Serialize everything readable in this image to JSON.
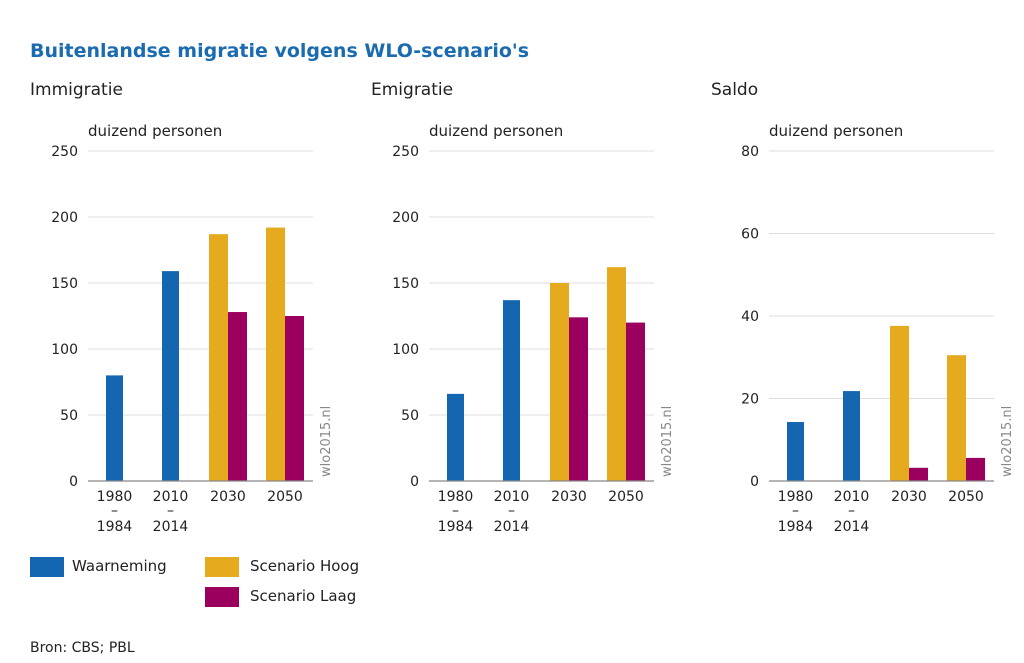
{
  "title": "Buitenlandse migratie volgens WLO-scenario's",
  "source": "Bron: CBS; PBL",
  "watermark": "wlo2015.nl",
  "legend": [
    {
      "name": "Waarneming",
      "color": "#1566b0"
    },
    {
      "name": "Scenario Hoog",
      "color": "#e5aa1e"
    },
    {
      "name": "Scenario Laag",
      "color": "#9b005f"
    }
  ],
  "chart_data": [
    {
      "type": "bar",
      "title": "Immigratie",
      "ylabel": "duizend personen",
      "ylim": [
        0,
        250
      ],
      "yticks": [
        0,
        50,
        100,
        150,
        200,
        250
      ],
      "grid": true,
      "categories": [
        "1980 – 1984",
        "2010 – 2014",
        "2030",
        "2050"
      ],
      "series": [
        {
          "name": "Waarneming",
          "values": [
            80,
            159,
            null,
            null
          ]
        },
        {
          "name": "Scenario Hoog",
          "values": [
            null,
            null,
            187,
            192
          ]
        },
        {
          "name": "Scenario Laag",
          "values": [
            null,
            null,
            128,
            125
          ]
        }
      ]
    },
    {
      "type": "bar",
      "title": "Emigratie",
      "ylabel": "duizend personen",
      "ylim": [
        0,
        250
      ],
      "yticks": [
        0,
        50,
        100,
        150,
        200,
        250
      ],
      "grid": true,
      "categories": [
        "1980 – 1984",
        "2010 – 2014",
        "2030",
        "2050"
      ],
      "series": [
        {
          "name": "Waarneming",
          "values": [
            66,
            137,
            null,
            null
          ]
        },
        {
          "name": "Scenario Hoog",
          "values": [
            null,
            null,
            150,
            162
          ]
        },
        {
          "name": "Scenario Laag",
          "values": [
            null,
            null,
            124,
            120
          ]
        }
      ]
    },
    {
      "type": "bar",
      "title": "Saldo",
      "ylabel": "duizend personen",
      "ylim": [
        0,
        80
      ],
      "yticks": [
        0,
        20,
        40,
        60,
        80
      ],
      "grid": true,
      "categories": [
        "1980 – 1984",
        "2010 – 2014",
        "2030",
        "2050"
      ],
      "series": [
        {
          "name": "Waarneming",
          "values": [
            14.3,
            21.8,
            null,
            null
          ]
        },
        {
          "name": "Scenario Hoog",
          "values": [
            null,
            null,
            37.6,
            30.5
          ]
        },
        {
          "name": "Scenario Laag",
          "values": [
            null,
            null,
            3.2,
            5.6
          ]
        }
      ]
    }
  ]
}
